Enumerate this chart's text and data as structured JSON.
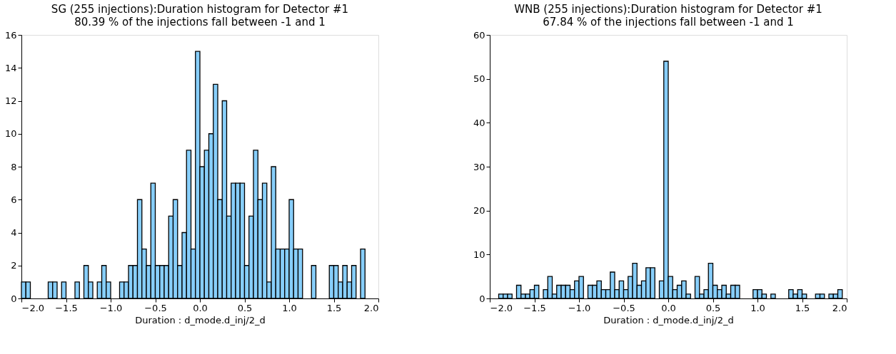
{
  "chart_data": [
    {
      "type": "histogram",
      "title": "SG (255 injections):Duration histogram for Detector #1",
      "subtitle": "80.39 % of the injections fall between -1 and 1",
      "xlabel": "Duration : d_mode.d_inj/2_d",
      "color": "#87cefa",
      "bins": [
        -2,
        -1.95,
        -1.9,
        -1.85,
        -1.8,
        -1.75,
        -1.7,
        -1.65,
        -1.6,
        -1.55,
        -1.5,
        -1.45,
        -1.4,
        -1.35,
        -1.3,
        -1.25,
        -1.2,
        -1.15,
        -1.1,
        -1.05,
        -1,
        -0.95,
        -0.9,
        -0.85,
        -0.8,
        -0.75,
        -0.7,
        -0.65,
        -0.6,
        -0.55,
        -0.5,
        -0.45,
        -0.4,
        -0.35,
        -0.3,
        -0.25,
        -0.2,
        -0.15,
        -0.1,
        -0.05,
        0,
        0.05,
        0.1,
        0.15,
        0.2,
        0.25,
        0.3,
        0.35,
        0.4,
        0.45,
        0.5,
        0.55,
        0.6,
        0.65,
        0.7,
        0.75,
        0.8,
        0.85,
        0.9,
        0.95,
        1,
        1.05,
        1.1,
        1.15,
        1.2,
        1.25,
        1.3,
        1.35,
        1.4,
        1.45,
        1.5,
        1.55,
        1.6,
        1.65,
        1.7,
        1.75,
        1.8,
        1.85,
        1.9,
        1.95,
        2
      ],
      "values": [
        1,
        1,
        0,
        0,
        0,
        0,
        1,
        1,
        0,
        1,
        0,
        0,
        1,
        0,
        2,
        1,
        0,
        1,
        2,
        1,
        0,
        0,
        1,
        1,
        2,
        2,
        6,
        3,
        2,
        7,
        2,
        2,
        2,
        5,
        6,
        2,
        4,
        9,
        3,
        15,
        8,
        9,
        10,
        13,
        6,
        12,
        5,
        7,
        7,
        7,
        2,
        5,
        9,
        6,
        7,
        1,
        8,
        3,
        3,
        3,
        6,
        3,
        3,
        0,
        0,
        2,
        0,
        0,
        0,
        2,
        2,
        1,
        2,
        1,
        2,
        0,
        3,
        0,
        0,
        0
      ],
      "xlim": [
        -2,
        2
      ],
      "xticks": [
        {
          "value": -2,
          "label": "−2.0"
        },
        -1.5,
        {
          "value": -1,
          "label": "−1.0"
        },
        -0.5,
        {
          "value": 0,
          "label": "0.0"
        },
        0.5,
        {
          "value": 1,
          "label": "1.0"
        },
        1.5,
        {
          "value": 2,
          "label": "2.0"
        }
      ],
      "ylim": [
        0,
        16
      ],
      "yticks": [
        0,
        2,
        4,
        6,
        8,
        10,
        12,
        14,
        16
      ],
      "grid": false
    },
    {
      "type": "histogram",
      "title": "WNB (255 injections):Duration histogram for Detector #1",
      "subtitle": "67.84 % of the injections fall between -1 and 1",
      "xlabel": "Duration : d_mode.d_inj/2_d",
      "color": "#87cefa",
      "bins": [
        -2,
        -1.95,
        -1.9,
        -1.85,
        -1.8,
        -1.75,
        -1.7,
        -1.65,
        -1.6,
        -1.55,
        -1.5,
        -1.45,
        -1.4,
        -1.35,
        -1.3,
        -1.25,
        -1.2,
        -1.15,
        -1.1,
        -1.05,
        -1,
        -0.95,
        -0.9,
        -0.85,
        -0.8,
        -0.75,
        -0.7,
        -0.65,
        -0.6,
        -0.55,
        -0.5,
        -0.45,
        -0.4,
        -0.35,
        -0.3,
        -0.25,
        -0.2,
        -0.15,
        -0.1,
        -0.05,
        0,
        0.05,
        0.1,
        0.15,
        0.2,
        0.25,
        0.3,
        0.35,
        0.4,
        0.45,
        0.5,
        0.55,
        0.6,
        0.65,
        0.7,
        0.75,
        0.8,
        0.85,
        0.9,
        0.95,
        1,
        1.05,
        1.1,
        1.15,
        1.2,
        1.25,
        1.3,
        1.35,
        1.4,
        1.45,
        1.5,
        1.55,
        1.6,
        1.65,
        1.7,
        1.75,
        1.8,
        1.85,
        1.9,
        1.95,
        2
      ],
      "values": [
        0,
        0,
        1,
        1,
        1,
        0,
        3,
        1,
        1,
        2,
        3,
        0,
        2,
        5,
        1,
        3,
        3,
        3,
        2,
        4,
        5,
        0,
        3,
        3,
        4,
        2,
        2,
        6,
        2,
        4,
        2,
        5,
        8,
        3,
        4,
        7,
        7,
        0,
        4,
        54,
        5,
        2,
        3,
        4,
        1,
        0,
        5,
        1,
        2,
        8,
        3,
        2,
        3,
        1,
        3,
        3,
        0,
        0,
        0,
        2,
        2,
        1,
        0,
        1,
        0,
        0,
        0,
        2,
        1,
        2,
        1,
        0,
        0,
        1,
        1,
        0,
        1,
        1,
        2,
        0
      ],
      "xlim": [
        -2,
        2
      ],
      "xticks": [
        {
          "value": -2,
          "label": "−2.0"
        },
        -1.5,
        {
          "value": -1,
          "label": "−1.0"
        },
        -0.5,
        {
          "value": 0,
          "label": "0.0"
        },
        0.5,
        {
          "value": 1,
          "label": "1.0"
        },
        1.5,
        {
          "value": 2,
          "label": "2.0"
        }
      ],
      "ylim": [
        0,
        60
      ],
      "yticks": [
        0,
        10,
        20,
        30,
        40,
        50,
        60
      ],
      "grid": false
    }
  ]
}
